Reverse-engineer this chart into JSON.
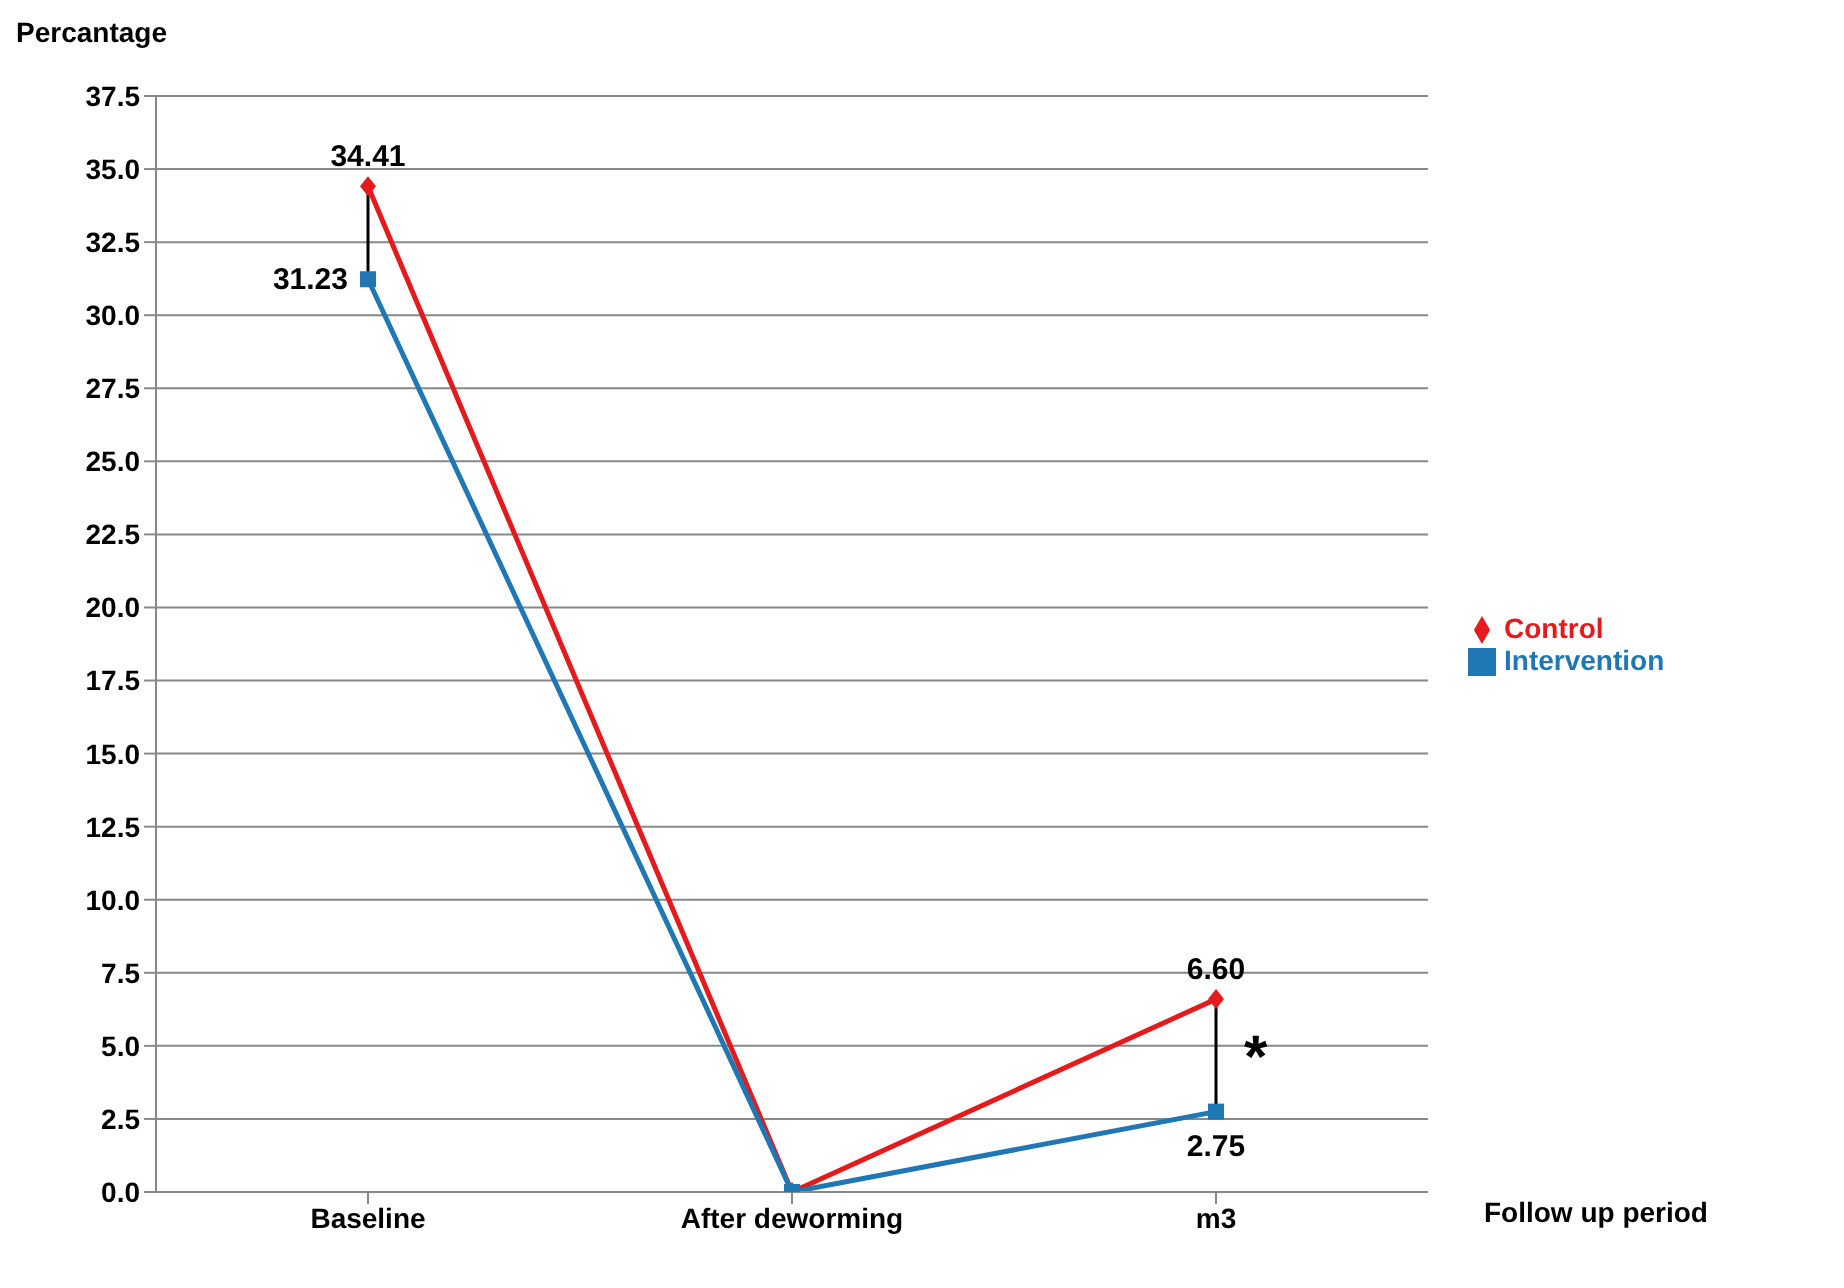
{
  "chart_data": {
    "type": "line",
    "xlabel": "Follow up period",
    "ylabel": "Percantage",
    "categories": [
      "Baseline",
      "After deworming",
      "m3"
    ],
    "series": [
      {
        "name": "Control",
        "color": "#e41a1c",
        "marker": "diamond",
        "values": [
          34.41,
          0,
          6.6
        ],
        "value_labels": [
          "34.41",
          null,
          "6.60"
        ]
      },
      {
        "name": "Intervention",
        "color": "#1f77b4",
        "marker": "square",
        "values": [
          31.23,
          0,
          2.75
        ],
        "value_labels": [
          "31.23",
          null,
          "2.75"
        ]
      }
    ],
    "ylim": [
      0,
      37.5
    ],
    "yticks": [
      {
        "value": 0,
        "label": "0.0"
      },
      2.5,
      {
        "value": 5,
        "label": "5.0"
      },
      7.5,
      {
        "value": 10,
        "label": "10.0"
      },
      12.5,
      {
        "value": 15,
        "label": "15.0"
      },
      17.5,
      {
        "value": 20,
        "label": "20.0"
      },
      22.5,
      {
        "value": 25,
        "label": "25.0"
      },
      27.5,
      {
        "value": 30,
        "label": "30.0"
      },
      32.5,
      {
        "value": 35,
        "label": "35.0"
      },
      37.5
    ],
    "grid": "y",
    "legend": "right",
    "annotations": [
      "*"
    ]
  }
}
